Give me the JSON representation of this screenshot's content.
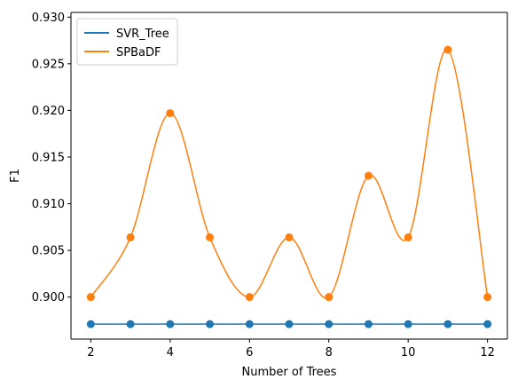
{
  "chart_data": {
    "type": "line",
    "title": "",
    "xlabel": "Number of Trees",
    "ylabel": "F1",
    "xlim": [
      1.5,
      12.5
    ],
    "ylim": [
      0.8955,
      0.9305
    ],
    "xticks": [
      2,
      4,
      6,
      8,
      10,
      12
    ],
    "yticks": [
      0.9,
      0.905,
      0.91,
      0.915,
      0.92,
      0.925,
      0.93
    ],
    "ytick_labels": [
      "0.900",
      "0.905",
      "0.910",
      "0.915",
      "0.920",
      "0.925",
      "0.930"
    ],
    "grid": false,
    "legend_position": "top-left",
    "x": [
      2,
      3,
      4,
      5,
      6,
      7,
      8,
      9,
      10,
      11,
      12
    ],
    "series": [
      {
        "name": "SVR_Tree",
        "color": "#1f77b4",
        "values": [
          0.8971,
          0.8971,
          0.8971,
          0.8971,
          0.8971,
          0.8971,
          0.8971,
          0.8971,
          0.8971,
          0.8971,
          0.8971
        ]
      },
      {
        "name": "SPBaDF",
        "color": "#ff7f0e",
        "values": [
          0.9,
          0.9064,
          0.9197,
          0.9064,
          0.9,
          0.9064,
          0.9,
          0.913,
          0.9064,
          0.9265,
          0.9
        ]
      }
    ]
  }
}
